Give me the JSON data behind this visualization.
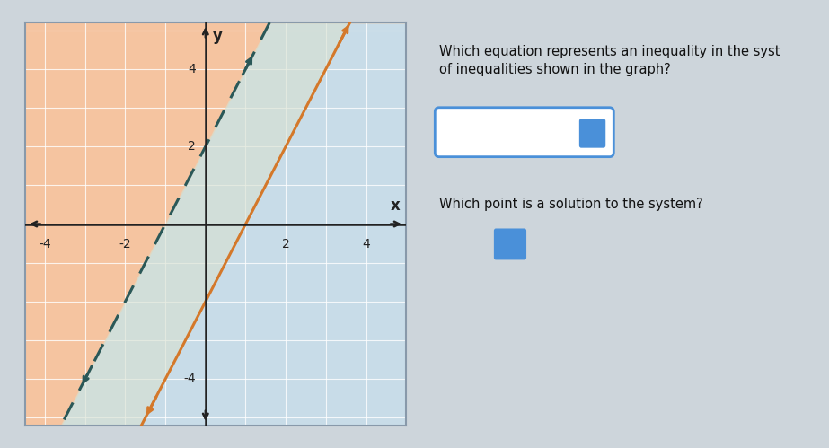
{
  "pink_color": "#f5c4a0",
  "blue_color": "#c8dce8",
  "overlap_color": "#d8e0d0",
  "dashed_line_color": "#2a5858",
  "solid_line_color": "#d4782a",
  "axis_color": "#222222",
  "grid_color": "#aabbcc",
  "xlim": [
    -4.5,
    5.0
  ],
  "ylim": [
    -5.2,
    5.2
  ],
  "dashed_slope": 2,
  "dashed_intercept": 2,
  "solid_slope": 2,
  "solid_intercept": -2,
  "question1": "Which equation represents an inequality in the syst\nof inequalities shown in the graph?",
  "question2": "Which point is a solution to the system?",
  "box1_color": "#4a90d9",
  "box2_color": "#4a90d9",
  "outer_bg": "#cdd5db",
  "right_bg": "#cdd5db",
  "graph_frame_color": "#8899aa",
  "xlabel": "x",
  "ylabel": "y"
}
